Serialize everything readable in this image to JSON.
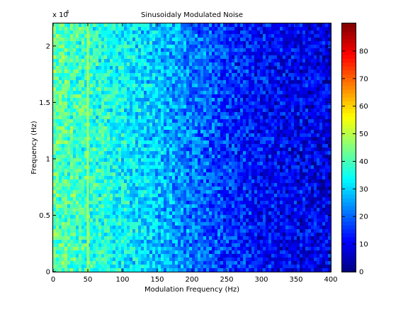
{
  "chart_data": {
    "type": "heatmap",
    "title": "Sinusoidaly Modulated Noise",
    "xlabel": "Modulation Frequency (Hz)",
    "ylabel": "Frequency (Hz)",
    "xlim": [
      0,
      400
    ],
    "ylim": [
      0,
      22000
    ],
    "x_ticks": [
      0,
      50,
      100,
      150,
      200,
      250,
      300,
      350,
      400
    ],
    "x_tick_labels": [
      "0",
      "50",
      "100",
      "150",
      "200",
      "250",
      "300",
      "350",
      "400"
    ],
    "y_ticks": [
      0,
      5000,
      10000,
      15000,
      20000
    ],
    "y_tick_labels": [
      "0",
      "0.5",
      "1",
      "1.5",
      "2"
    ],
    "y_exponent_label": "x 10",
    "y_exponent_power": "4",
    "colormap": "jet",
    "color_range": [
      0,
      90
    ],
    "colorbar_ticks": [
      0,
      10,
      20,
      30,
      40,
      50,
      60,
      70,
      80
    ],
    "colorbar_tick_labels": [
      "0",
      "10",
      "20",
      "30",
      "40",
      "50",
      "60",
      "70",
      "80"
    ],
    "intensity_profile": {
      "x": [
        0,
        25,
        50,
        75,
        100,
        150,
        200,
        250,
        300,
        350,
        400
      ],
      "mean": [
        42,
        40,
        38,
        36,
        34,
        29,
        22,
        16,
        12,
        10,
        9
      ]
    },
    "highlight_line": {
      "x": 50,
      "value": 50
    },
    "grid": false
  }
}
